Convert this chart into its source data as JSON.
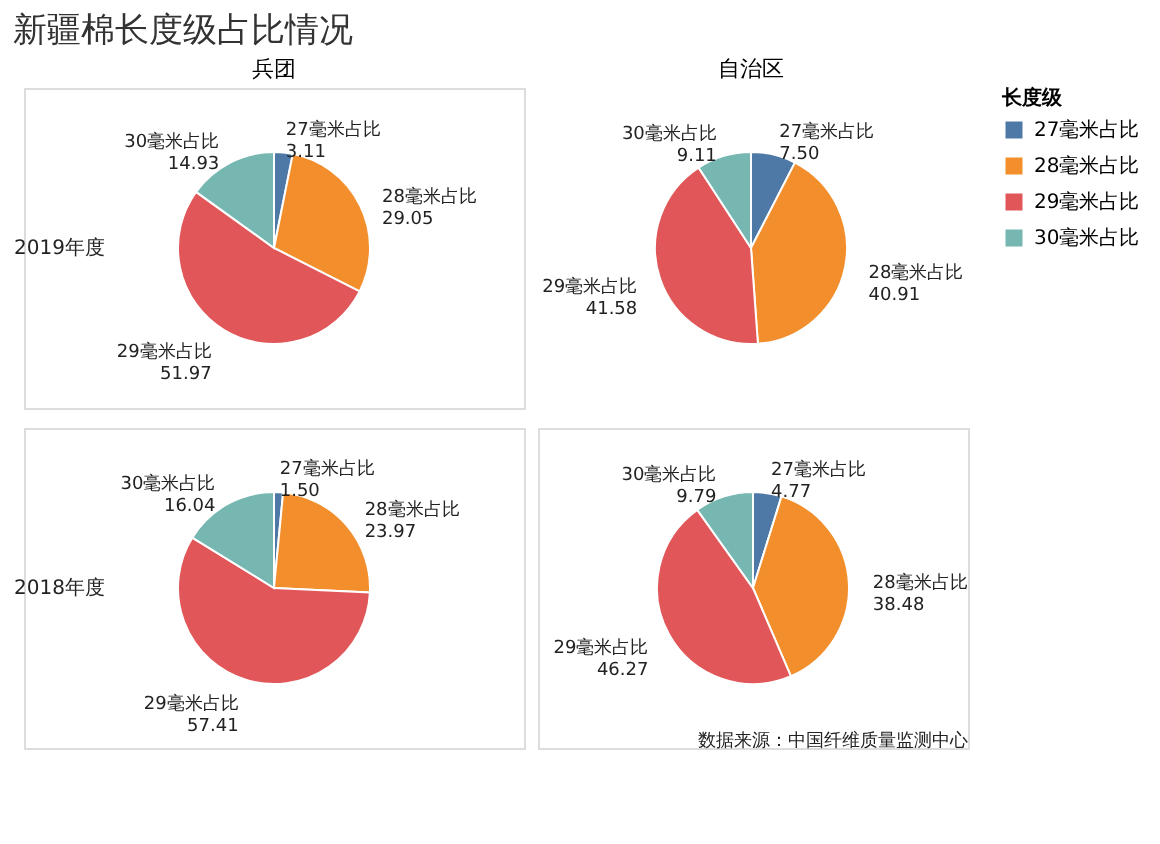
{
  "chart_data": [
    {
      "type": "pie",
      "title": "新疆棉长度级占比情况",
      "subtitle": "兵团",
      "ylabel": "2019年度",
      "categories": [
        "27毫米占比",
        "28毫米占比",
        "29毫米占比",
        "30毫米占比"
      ],
      "values": [
        3.11,
        29.05,
        51.97,
        14.93
      ],
      "value_labels": [
        "3.11",
        "29.05",
        "51.97",
        "14.93"
      ],
      "colors": [
        "#4e79a7",
        "#f28e2b",
        "#e15759",
        "#76b7b2"
      ]
    },
    {
      "type": "pie",
      "subtitle": "自治区",
      "legend": "top right",
      "legend_title": "长度级",
      "categories": [
        "27毫米占比",
        "28毫米占比",
        "29毫米占比",
        "30毫米占比"
      ],
      "values": [
        7.5,
        40.91,
        41.58,
        9.11
      ],
      "value_labels": [
        "7.50",
        "40.91",
        "41.58",
        "9.11"
      ],
      "colors": [
        "#4e79a7",
        "#f28e2b",
        "#e15759",
        "#76b7b2"
      ]
    },
    {
      "type": "pie",
      "ylabel": "2018年度",
      "categories": [
        "27毫米占比",
        "28毫米占比",
        "29毫米占比",
        "30毫米占比"
      ],
      "values": [
        1.5,
        23.97,
        57.41,
        16.04
      ],
      "value_labels": [
        "1.50",
        "23.97",
        "57.41",
        "16.04"
      ],
      "colors": [
        "#4e79a7",
        "#f28e2b",
        "#e15759",
        "#76b7b2"
      ]
    },
    {
      "type": "pie",
      "categories": [
        "27毫米占比",
        "28毫米占比",
        "29毫米占比",
        "30毫米占比"
      ],
      "values": [
        4.77,
        38.48,
        46.27,
        9.79
      ],
      "value_labels": [
        "4.77",
        "38.48",
        "46.27",
        "9.79"
      ],
      "colors": [
        "#4e79a7",
        "#f28e2b",
        "#e15759",
        "#76b7b2"
      ],
      "annotations": [
        "数据来源：中国纤维质量监测中心"
      ]
    }
  ]
}
